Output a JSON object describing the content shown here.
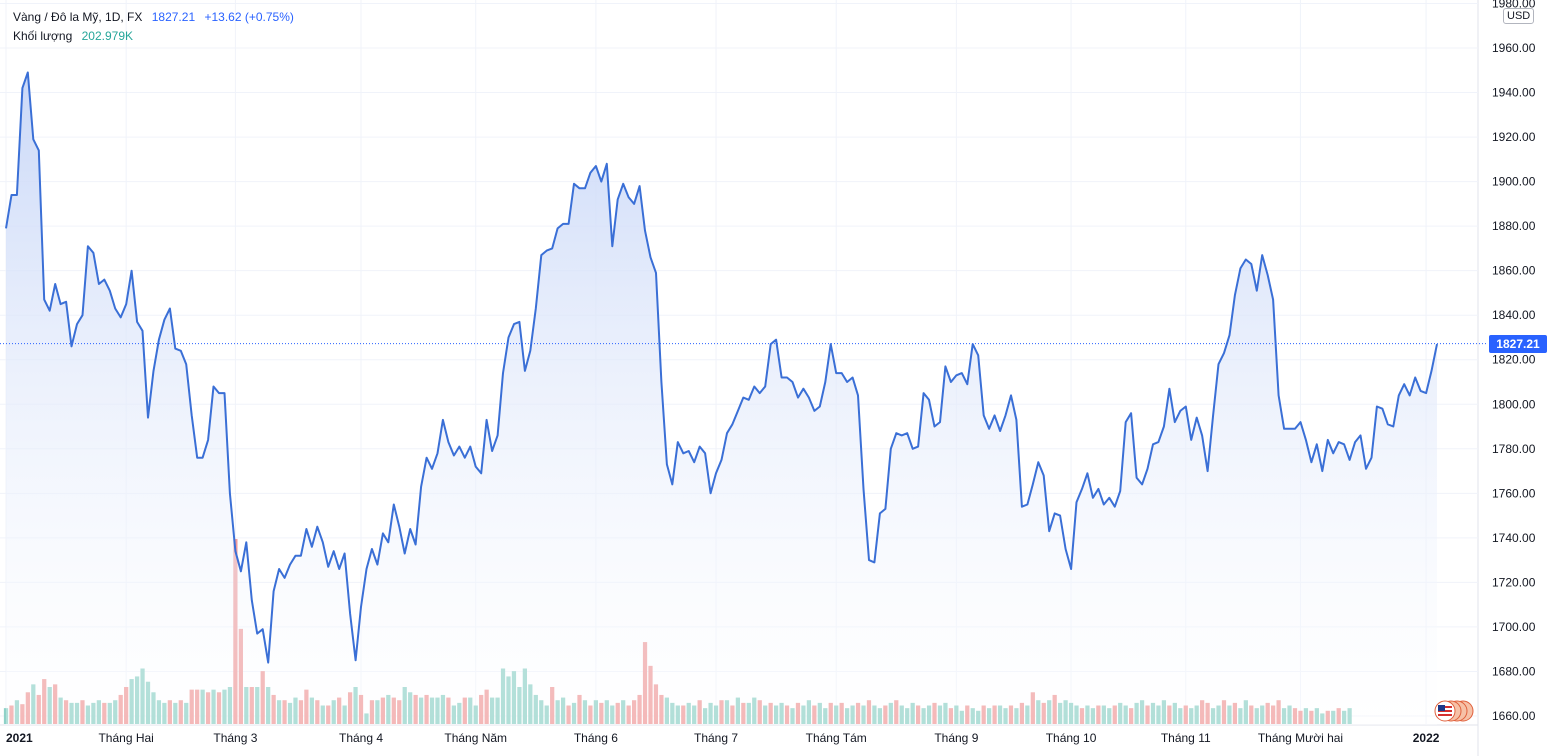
{
  "legend": {
    "symbol": "Vàng / Đô la Mỹ, 1D, FX",
    "price": "1827.21",
    "change": "+13.62 (+0.75%)",
    "volume_label": "Khối lượng",
    "volume_value": "202.979K"
  },
  "current_price_label": "1827.21",
  "unit": "USD",
  "colors": {
    "line": "#3a6fd6",
    "fill_top": "#c7d6f7",
    "vol_up": "#8fd1c7",
    "vol_down": "#ef9a9a",
    "badge": "#2962ff"
  },
  "chart_data": {
    "type": "area",
    "y_ticks": [
      "1660.00",
      "1680.00",
      "1700.00",
      "1720.00",
      "1740.00",
      "1760.00",
      "1780.00",
      "1800.00",
      "1820.00",
      "1840.00",
      "1860.00",
      "1880.00",
      "1900.00",
      "1920.00",
      "1940.00",
      "1960.00",
      "1980.00"
    ],
    "ylim": [
      1660,
      1980
    ],
    "x_ticks": [
      {
        "label": "2021",
        "day": 0
      },
      {
        "label": "Tháng Hai",
        "day": 22
      },
      {
        "label": "Tháng 3",
        "day": 42
      },
      {
        "label": "Tháng 4",
        "day": 65
      },
      {
        "label": "Tháng Năm",
        "day": 86
      },
      {
        "label": "Tháng 6",
        "day": 108
      },
      {
        "label": "Tháng 7",
        "day": 130
      },
      {
        "label": "Tháng Tám",
        "day": 152
      },
      {
        "label": "Tháng 9",
        "day": 174
      },
      {
        "label": "Tháng 10",
        "day": 195
      },
      {
        "label": "Tháng 11",
        "day": 216
      },
      {
        "label": "Tháng Mười hai",
        "day": 237
      },
      {
        "label": "2022",
        "day": 260
      }
    ],
    "prices": [
      1879,
      1894,
      1894,
      1942,
      1949,
      1919,
      1914,
      1847,
      1842,
      1854,
      1845,
      1846,
      1826,
      1836,
      1840,
      1871,
      1868,
      1854,
      1856,
      1851,
      1843,
      1839,
      1845,
      1860,
      1837,
      1833,
      1794,
      1815,
      1829,
      1838,
      1843,
      1825,
      1824,
      1818,
      1795,
      1776,
      1776,
      1784,
      1808,
      1805,
      1805,
      1760,
      1734,
      1725,
      1738,
      1712,
      1697,
      1699,
      1684,
      1716,
      1726,
      1722,
      1728,
      1732,
      1732,
      1744,
      1736,
      1745,
      1738,
      1727,
      1734,
      1726,
      1733,
      1706,
      1685,
      1709,
      1726,
      1735,
      1728,
      1742,
      1738,
      1755,
      1745,
      1733,
      1744,
      1737,
      1763,
      1776,
      1771,
      1778,
      1793,
      1783,
      1777,
      1781,
      1776,
      1781,
      1772,
      1769,
      1793,
      1779,
      1786,
      1814,
      1830,
      1836,
      1837,
      1815,
      1824,
      1843,
      1867,
      1869,
      1870,
      1879,
      1881,
      1881,
      1899,
      1897,
      1897,
      1904,
      1907,
      1900,
      1908,
      1871,
      1892,
      1899,
      1893,
      1890,
      1898,
      1878,
      1866,
      1859,
      1810,
      1773,
      1764,
      1783,
      1778,
      1779,
      1774,
      1781,
      1778,
      1760,
      1769,
      1775,
      1787,
      1791,
      1797,
      1803,
      1802,
      1808,
      1805,
      1808,
      1827,
      1829,
      1812,
      1812,
      1810,
      1803,
      1807,
      1803,
      1797,
      1799,
      1810,
      1827,
      1814,
      1814,
      1810,
      1812,
      1804,
      1762,
      1730,
      1729,
      1751,
      1753,
      1780,
      1787,
      1786,
      1787,
      1780,
      1781,
      1805,
      1802,
      1790,
      1792,
      1817,
      1810,
      1813,
      1814,
      1809,
      1827,
      1822,
      1795,
      1789,
      1795,
      1788,
      1795,
      1804,
      1793,
      1754,
      1755,
      1764,
      1774,
      1768,
      1743,
      1751,
      1750,
      1735,
      1726,
      1756,
      1762,
      1769,
      1758,
      1762,
      1755,
      1758,
      1754,
      1761,
      1792,
      1796,
      1767,
      1764,
      1771,
      1782,
      1783,
      1790,
      1807,
      1792,
      1797,
      1799,
      1784,
      1794,
      1786,
      1770,
      1795,
      1818,
      1823,
      1831,
      1849,
      1861,
      1865,
      1863,
      1851,
      1867,
      1858,
      1847,
      1804,
      1789,
      1789,
      1789,
      1792,
      1784,
      1774,
      1782,
      1770,
      1784,
      1778,
      1783,
      1782,
      1775,
      1783,
      1786,
      1771,
      1776,
      1799,
      1798,
      1791,
      1790,
      1804,
      1809,
      1804,
      1812,
      1806,
      1805,
      1815,
      1827
    ],
    "volume": [
      {
        "v": 12,
        "up": true
      },
      {
        "v": 14,
        "up": false
      },
      {
        "v": 18,
        "up": true
      },
      {
        "v": 15,
        "up": false
      },
      {
        "v": 24,
        "up": false
      },
      {
        "v": 30,
        "up": true
      },
      {
        "v": 22,
        "up": false
      },
      {
        "v": 34,
        "up": false
      },
      {
        "v": 28,
        "up": true
      },
      {
        "v": 30,
        "up": false
      },
      {
        "v": 20,
        "up": true
      },
      {
        "v": 18,
        "up": false
      },
      {
        "v": 16,
        "up": true
      },
      {
        "v": 16,
        "up": true
      },
      {
        "v": 18,
        "up": false
      },
      {
        "v": 14,
        "up": true
      },
      {
        "v": 16,
        "up": true
      },
      {
        "v": 18,
        "up": true
      },
      {
        "v": 16,
        "up": false
      },
      {
        "v": 16,
        "up": true
      },
      {
        "v": 18,
        "up": true
      },
      {
        "v": 22,
        "up": false
      },
      {
        "v": 28,
        "up": false
      },
      {
        "v": 34,
        "up": true
      },
      {
        "v": 36,
        "up": true
      },
      {
        "v": 42,
        "up": true
      },
      {
        "v": 32,
        "up": true
      },
      {
        "v": 24,
        "up": true
      },
      {
        "v": 18,
        "up": true
      },
      {
        "v": 16,
        "up": true
      },
      {
        "v": 18,
        "up": false
      },
      {
        "v": 16,
        "up": true
      },
      {
        "v": 18,
        "up": false
      },
      {
        "v": 16,
        "up": true
      },
      {
        "v": 26,
        "up": false
      },
      {
        "v": 26,
        "up": false
      },
      {
        "v": 26,
        "up": true
      },
      {
        "v": 24,
        "up": false
      },
      {
        "v": 26,
        "up": true
      },
      {
        "v": 24,
        "up": false
      },
      {
        "v": 26,
        "up": true
      },
      {
        "v": 28,
        "up": true
      },
      {
        "v": 140,
        "up": false
      },
      {
        "v": 72,
        "up": false
      },
      {
        "v": 28,
        "up": true
      },
      {
        "v": 28,
        "up": false
      },
      {
        "v": 28,
        "up": true
      },
      {
        "v": 40,
        "up": false
      },
      {
        "v": 28,
        "up": true
      },
      {
        "v": 22,
        "up": false
      },
      {
        "v": 18,
        "up": true
      },
      {
        "v": 18,
        "up": false
      },
      {
        "v": 16,
        "up": true
      },
      {
        "v": 20,
        "up": true
      },
      {
        "v": 18,
        "up": false
      },
      {
        "v": 26,
        "up": false
      },
      {
        "v": 20,
        "up": true
      },
      {
        "v": 18,
        "up": false
      },
      {
        "v": 14,
        "up": true
      },
      {
        "v": 14,
        "up": false
      },
      {
        "v": 18,
        "up": true
      },
      {
        "v": 20,
        "up": false
      },
      {
        "v": 14,
        "up": true
      },
      {
        "v": 24,
        "up": false
      },
      {
        "v": 28,
        "up": true
      },
      {
        "v": 22,
        "up": false
      },
      {
        "v": 8,
        "up": true
      },
      {
        "v": 18,
        "up": false
      },
      {
        "v": 18,
        "up": true
      },
      {
        "v": 20,
        "up": false
      },
      {
        "v": 22,
        "up": true
      },
      {
        "v": 20,
        "up": false
      },
      {
        "v": 18,
        "up": false
      },
      {
        "v": 28,
        "up": true
      },
      {
        "v": 24,
        "up": true
      },
      {
        "v": 22,
        "up": false
      },
      {
        "v": 20,
        "up": true
      },
      {
        "v": 22,
        "up": false
      },
      {
        "v": 20,
        "up": true
      },
      {
        "v": 20,
        "up": true
      },
      {
        "v": 22,
        "up": true
      },
      {
        "v": 20,
        "up": false
      },
      {
        "v": 14,
        "up": true
      },
      {
        "v": 16,
        "up": true
      },
      {
        "v": 20,
        "up": false
      },
      {
        "v": 20,
        "up": true
      },
      {
        "v": 14,
        "up": true
      },
      {
        "v": 22,
        "up": false
      },
      {
        "v": 26,
        "up": false
      },
      {
        "v": 20,
        "up": true
      },
      {
        "v": 20,
        "up": true
      },
      {
        "v": 42,
        "up": true
      },
      {
        "v": 36,
        "up": true
      },
      {
        "v": 40,
        "up": true
      },
      {
        "v": 28,
        "up": true
      },
      {
        "v": 42,
        "up": true
      },
      {
        "v": 30,
        "up": true
      },
      {
        "v": 22,
        "up": true
      },
      {
        "v": 18,
        "up": true
      },
      {
        "v": 14,
        "up": true
      },
      {
        "v": 28,
        "up": false
      },
      {
        "v": 18,
        "up": true
      },
      {
        "v": 20,
        "up": true
      },
      {
        "v": 14,
        "up": false
      },
      {
        "v": 16,
        "up": true
      },
      {
        "v": 22,
        "up": false
      },
      {
        "v": 18,
        "up": true
      },
      {
        "v": 14,
        "up": false
      },
      {
        "v": 18,
        "up": true
      },
      {
        "v": 16,
        "up": false
      },
      {
        "v": 18,
        "up": true
      },
      {
        "v": 14,
        "up": true
      },
      {
        "v": 16,
        "up": false
      },
      {
        "v": 18,
        "up": true
      },
      {
        "v": 14,
        "up": false
      },
      {
        "v": 18,
        "up": false
      },
      {
        "v": 22,
        "up": false
      },
      {
        "v": 62,
        "up": false
      },
      {
        "v": 44,
        "up": false
      },
      {
        "v": 30,
        "up": false
      },
      {
        "v": 22,
        "up": false
      },
      {
        "v": 20,
        "up": true
      },
      {
        "v": 16,
        "up": true
      },
      {
        "v": 14,
        "up": true
      },
      {
        "v": 14,
        "up": false
      },
      {
        "v": 16,
        "up": true
      },
      {
        "v": 14,
        "up": true
      },
      {
        "v": 18,
        "up": false
      },
      {
        "v": 12,
        "up": true
      },
      {
        "v": 16,
        "up": true
      },
      {
        "v": 14,
        "up": true
      },
      {
        "v": 18,
        "up": false
      },
      {
        "v": 18,
        "up": true
      },
      {
        "v": 14,
        "up": false
      },
      {
        "v": 20,
        "up": true
      },
      {
        "v": 16,
        "up": false
      },
      {
        "v": 16,
        "up": true
      },
      {
        "v": 20,
        "up": true
      },
      {
        "v": 18,
        "up": false
      },
      {
        "v": 14,
        "up": true
      },
      {
        "v": 16,
        "up": false
      },
      {
        "v": 14,
        "up": true
      },
      {
        "v": 16,
        "up": true
      },
      {
        "v": 14,
        "up": false
      },
      {
        "v": 12,
        "up": true
      },
      {
        "v": 16,
        "up": false
      },
      {
        "v": 14,
        "up": true
      },
      {
        "v": 18,
        "up": true
      },
      {
        "v": 14,
        "up": false
      },
      {
        "v": 16,
        "up": true
      },
      {
        "v": 12,
        "up": true
      },
      {
        "v": 16,
        "up": false
      },
      {
        "v": 14,
        "up": true
      },
      {
        "v": 16,
        "up": false
      },
      {
        "v": 12,
        "up": true
      },
      {
        "v": 14,
        "up": true
      },
      {
        "v": 16,
        "up": false
      },
      {
        "v": 14,
        "up": true
      },
      {
        "v": 18,
        "up": false
      },
      {
        "v": 14,
        "up": true
      },
      {
        "v": 12,
        "up": true
      },
      {
        "v": 14,
        "up": false
      },
      {
        "v": 16,
        "up": true
      },
      {
        "v": 18,
        "up": false
      },
      {
        "v": 14,
        "up": true
      },
      {
        "v": 12,
        "up": true
      },
      {
        "v": 16,
        "up": true
      },
      {
        "v": 14,
        "up": false
      },
      {
        "v": 12,
        "up": true
      },
      {
        "v": 14,
        "up": true
      },
      {
        "v": 16,
        "up": false
      },
      {
        "v": 14,
        "up": true
      },
      {
        "v": 16,
        "up": true
      },
      {
        "v": 12,
        "up": false
      },
      {
        "v": 14,
        "up": true
      },
      {
        "v": 10,
        "up": true
      },
      {
        "v": 14,
        "up": false
      },
      {
        "v": 12,
        "up": true
      },
      {
        "v": 10,
        "up": true
      },
      {
        "v": 14,
        "up": false
      },
      {
        "v": 12,
        "up": true
      },
      {
        "v": 14,
        "up": false
      },
      {
        "v": 14,
        "up": true
      },
      {
        "v": 12,
        "up": true
      },
      {
        "v": 14,
        "up": false
      },
      {
        "v": 12,
        "up": true
      },
      {
        "v": 16,
        "up": false
      },
      {
        "v": 14,
        "up": true
      },
      {
        "v": 24,
        "up": false
      },
      {
        "v": 18,
        "up": true
      },
      {
        "v": 16,
        "up": false
      },
      {
        "v": 18,
        "up": true
      },
      {
        "v": 22,
        "up": false
      },
      {
        "v": 16,
        "up": true
      },
      {
        "v": 18,
        "up": true
      },
      {
        "v": 16,
        "up": true
      },
      {
        "v": 14,
        "up": true
      },
      {
        "v": 12,
        "up": false
      },
      {
        "v": 14,
        "up": true
      },
      {
        "v": 12,
        "up": true
      },
      {
        "v": 14,
        "up": false
      },
      {
        "v": 14,
        "up": true
      },
      {
        "v": 12,
        "up": true
      },
      {
        "v": 14,
        "up": false
      },
      {
        "v": 16,
        "up": true
      },
      {
        "v": 14,
        "up": true
      },
      {
        "v": 12,
        "up": false
      },
      {
        "v": 16,
        "up": true
      },
      {
        "v": 18,
        "up": true
      },
      {
        "v": 14,
        "up": false
      },
      {
        "v": 16,
        "up": true
      },
      {
        "v": 14,
        "up": true
      },
      {
        "v": 18,
        "up": true
      },
      {
        "v": 14,
        "up": false
      },
      {
        "v": 16,
        "up": true
      },
      {
        "v": 12,
        "up": true
      },
      {
        "v": 14,
        "up": false
      },
      {
        "v": 12,
        "up": true
      },
      {
        "v": 14,
        "up": true
      },
      {
        "v": 18,
        "up": false
      },
      {
        "v": 16,
        "up": false
      },
      {
        "v": 12,
        "up": true
      },
      {
        "v": 14,
        "up": true
      },
      {
        "v": 18,
        "up": false
      },
      {
        "v": 14,
        "up": true
      },
      {
        "v": 16,
        "up": false
      },
      {
        "v": 12,
        "up": true
      },
      {
        "v": 18,
        "up": true
      },
      {
        "v": 14,
        "up": false
      },
      {
        "v": 12,
        "up": true
      },
      {
        "v": 14,
        "up": true
      },
      {
        "v": 16,
        "up": false
      },
      {
        "v": 14,
        "up": false
      },
      {
        "v": 18,
        "up": false
      },
      {
        "v": 12,
        "up": true
      },
      {
        "v": 14,
        "up": true
      },
      {
        "v": 12,
        "up": false
      },
      {
        "v": 10,
        "up": false
      },
      {
        "v": 12,
        "up": true
      },
      {
        "v": 10,
        "up": false
      },
      {
        "v": 12,
        "up": true
      },
      {
        "v": 8,
        "up": true
      },
      {
        "v": 10,
        "up": false
      },
      {
        "v": 10,
        "up": true
      },
      {
        "v": 12,
        "up": false
      },
      {
        "v": 10,
        "up": true
      },
      {
        "v": 12,
        "up": true
      }
    ],
    "current_value": 1827.21
  }
}
